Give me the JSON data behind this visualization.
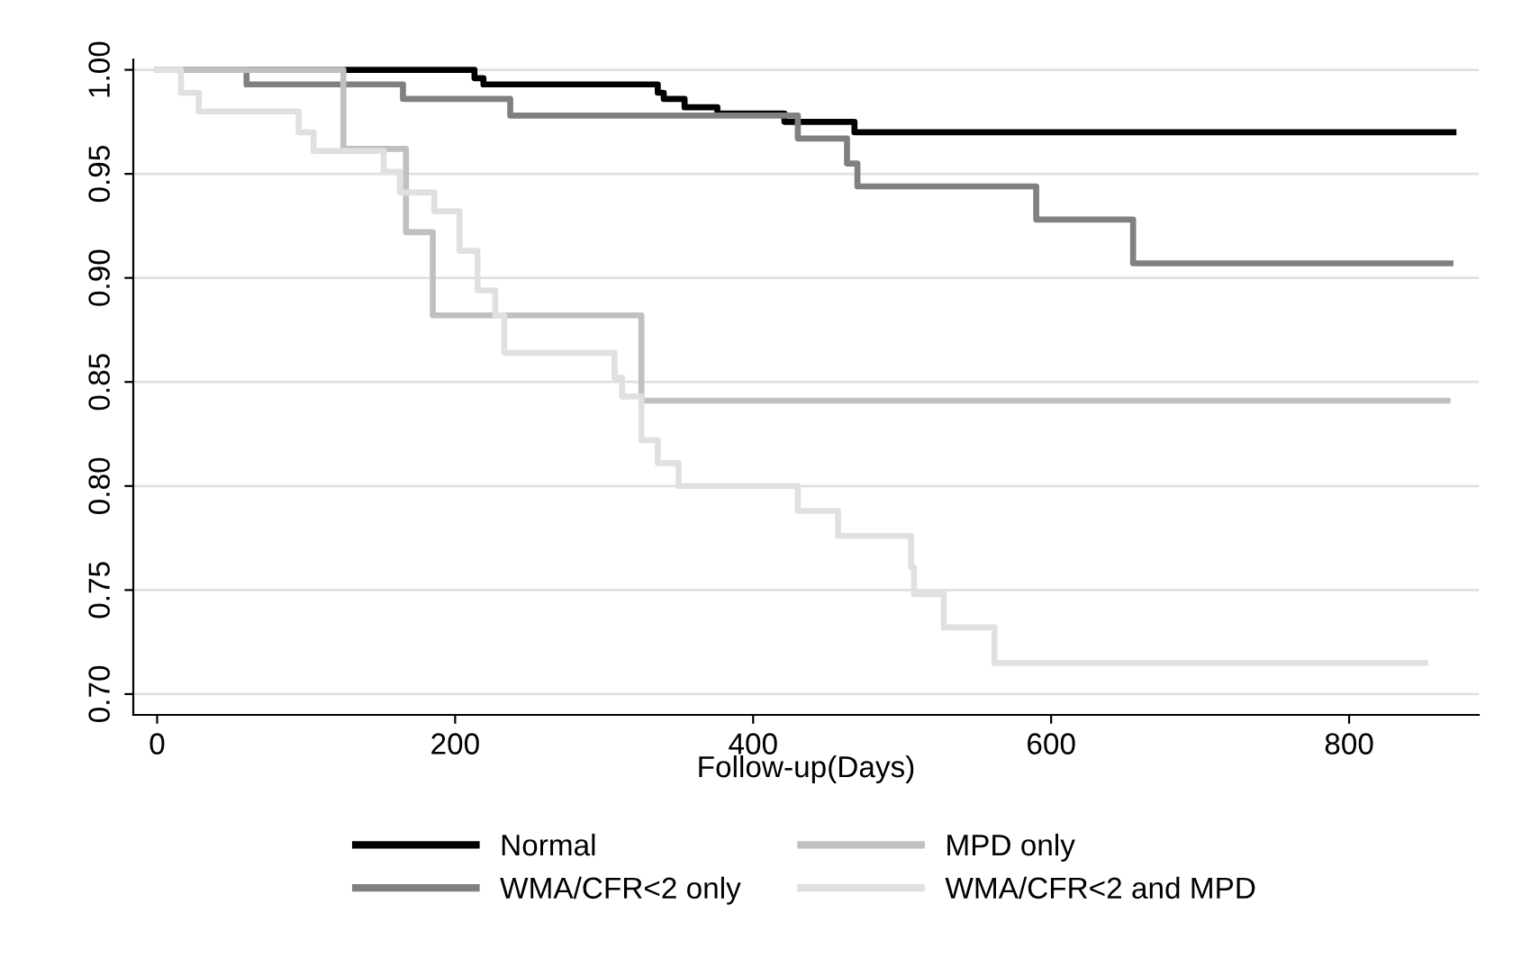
{
  "chart_data": {
    "type": "step",
    "xlabel": "Follow-up(Days)",
    "xlim": [
      -16,
      887
    ],
    "xticks": [
      0,
      200,
      400,
      600,
      800
    ],
    "ylim": [
      0.69,
      1.005
    ],
    "yticks": [
      {
        "value": 0.7,
        "label": "0.70"
      },
      {
        "value": 0.75,
        "label": "0.75"
      },
      {
        "value": 0.8,
        "label": "0.80"
      },
      {
        "value": 0.85,
        "label": "0.85"
      },
      {
        "value": 0.9,
        "label": "0.90"
      },
      {
        "value": 0.95,
        "label": "0.95"
      },
      {
        "value": 1.0,
        "label": "1.00"
      }
    ],
    "grid": "y",
    "legend": "bottom",
    "series": [
      {
        "name": "Normal",
        "color": "#000000",
        "x": [
          0,
          213,
          219,
          336,
          340,
          354,
          376,
          421,
          468,
          870
        ],
        "values": [
          1.0,
          0.996,
          0.993,
          0.989,
          0.986,
          0.982,
          0.979,
          0.975,
          0.97,
          0.97
        ]
      },
      {
        "name": "WMA/CFR<2 only",
        "color": "#808080",
        "x": [
          0,
          60,
          165,
          237,
          430,
          463,
          470,
          590,
          655,
          868
        ],
        "values": [
          1.0,
          0.993,
          0.986,
          0.978,
          0.967,
          0.955,
          0.944,
          0.928,
          0.907,
          0.907
        ]
      },
      {
        "name": "MPD only",
        "color": "#c0c0c0",
        "x": [
          0,
          125,
          167,
          185,
          325,
          866
        ],
        "values": [
          1.0,
          0.962,
          0.922,
          0.882,
          0.841,
          0.841
        ]
      },
      {
        "name": "WMA/CFR<2 and MPD",
        "color": "#e0e0e0",
        "x": [
          0,
          16,
          28,
          95,
          105,
          152,
          163,
          186,
          203,
          215,
          227,
          233,
          307,
          312,
          325,
          336,
          350,
          430,
          457,
          506,
          508,
          528,
          562,
          851
        ],
        "values": [
          1.0,
          0.989,
          0.98,
          0.97,
          0.961,
          0.951,
          0.941,
          0.932,
          0.913,
          0.894,
          0.882,
          0.864,
          0.852,
          0.843,
          0.822,
          0.811,
          0.8,
          0.788,
          0.776,
          0.761,
          0.748,
          0.732,
          0.715,
          0.715
        ]
      }
    ]
  }
}
